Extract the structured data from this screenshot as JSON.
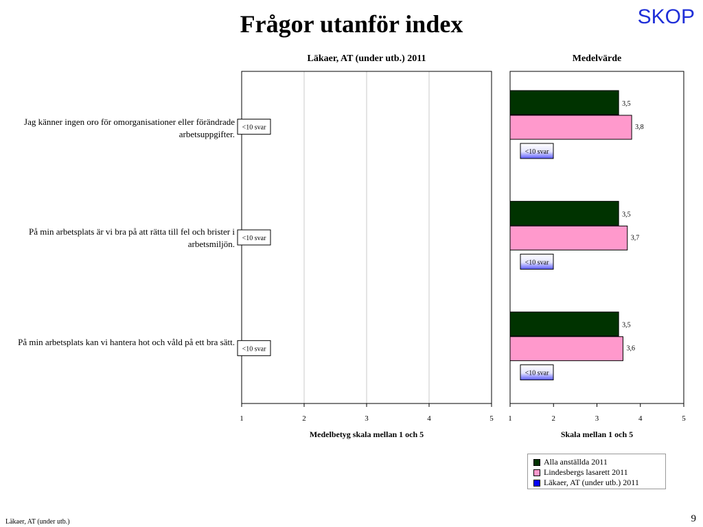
{
  "slide": {
    "title": "Frågor utanför index",
    "logo": "SKOP",
    "footer": "Läkaer, AT (under utb.)",
    "page_number": "9"
  },
  "colors": {
    "alla": "#003300",
    "lindesberg": "#ff99cc",
    "lakaer": "#0000ff"
  },
  "chart_data": [
    {
      "type": "bar",
      "title": "Läkaer, AT (under utb.) 2011",
      "xlabel": "Medelbetyg skala mellan 1 och 5",
      "xlim": [
        1,
        5
      ],
      "ticks": [
        "1",
        "2",
        "3",
        "4",
        "5"
      ],
      "grid": true,
      "categories": [
        "Jag känner ingen oro för omorganisationer eller förändrade arbetsuppgifter.",
        "På min arbetsplats är vi bra på att rätta till fel och brister i arbetsmiljön.",
        "På min arbetsplats kan vi hantera hot och våld på ett bra sätt."
      ],
      "values": [
        null,
        null,
        null
      ],
      "labels": [
        "<10 svar",
        "<10 svar",
        "<10 svar"
      ]
    },
    {
      "type": "bar",
      "title": "Medelvärde",
      "xlabel": "Skala mellan 1 och 5",
      "xlim": [
        1,
        5
      ],
      "ticks": [
        "1",
        "2",
        "3",
        "4",
        "5"
      ],
      "grid": false,
      "series": [
        {
          "name": "Alla anställda 2011",
          "values": [
            3.5,
            3.5,
            3.5
          ],
          "labels": [
            "3,5",
            "3,5",
            "3,5"
          ]
        },
        {
          "name": "Lindesbergs lasarett 2011",
          "values": [
            3.8,
            3.7,
            3.6
          ],
          "labels": [
            "3,8",
            "3,7",
            "3,6"
          ]
        },
        {
          "name": "Läkaer, AT (under utb.) 2011",
          "values": [
            null,
            null,
            null
          ],
          "labels": [
            "<10 svar",
            "<10 svar",
            "<10 svar"
          ]
        }
      ],
      "legend": "bottom-right"
    }
  ]
}
